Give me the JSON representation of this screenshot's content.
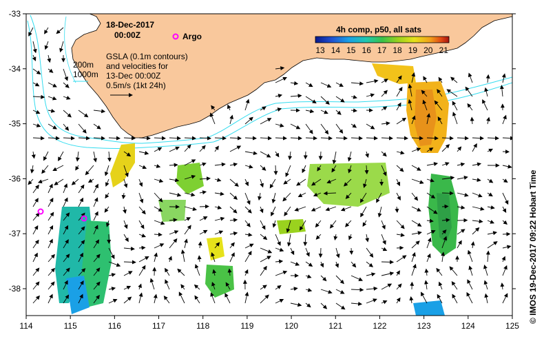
{
  "header": {
    "date": "18-Dec-2017",
    "time": "00:00Z",
    "argo_label": "Argo"
  },
  "info_lines": [
    "GSLA (0.1m contours)",
    "and velocities for",
    "13-Dec 00:00Z",
    "0.5m/s (1kt 24h)"
  ],
  "depth_labels": [
    "200m",
    "1000m"
  ],
  "colorbar": {
    "title": "4h comp, p50, all sats",
    "ticks": [
      "13",
      "14",
      "15",
      "16",
      "17",
      "18",
      "19",
      "20",
      "21"
    ],
    "colors": [
      "#0a1a8c",
      "#1f4fd0",
      "#1aa0e6",
      "#20c8b0",
      "#39c24a",
      "#9ad21e",
      "#e6e21a",
      "#f2a01a",
      "#e04a14",
      "#a81410"
    ]
  },
  "axes": {
    "x_ticks": [
      "114",
      "115",
      "116",
      "117",
      "118",
      "119",
      "120",
      "121",
      "122",
      "123",
      "124",
      "125"
    ],
    "y_ticks": [
      "-33",
      "-34",
      "-35",
      "-36",
      "-37",
      "-38"
    ]
  },
  "credit": "© IMOS 19-Dec-2017 09:22 Hobart Time",
  "colors": {
    "land": "#f9c89c",
    "contour": "#33dcef",
    "argo": "#ff00ff"
  }
}
